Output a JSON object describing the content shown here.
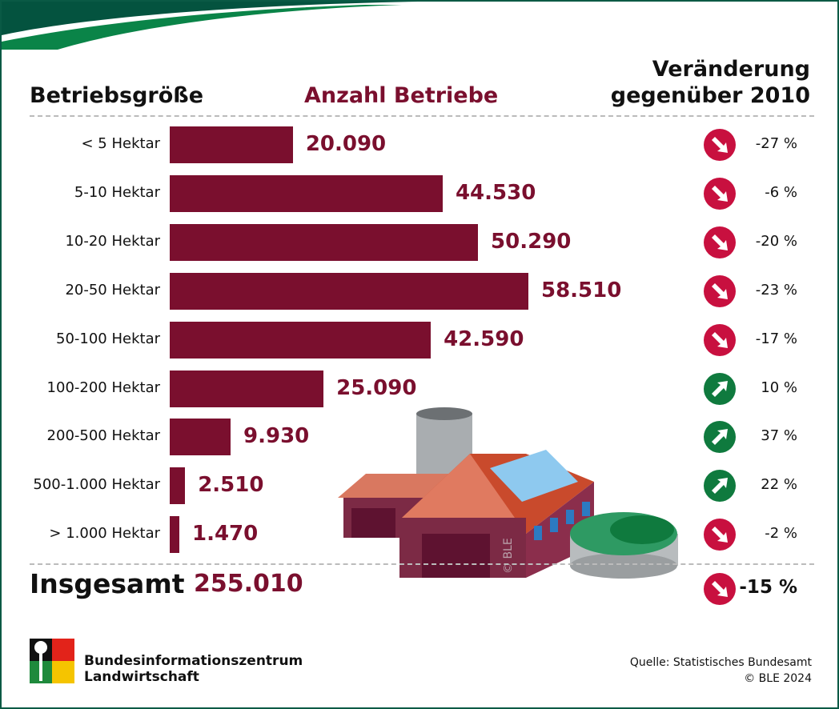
{
  "headers": {
    "size": "Betriebsgröße",
    "count": "Anzahl Betriebe",
    "change_line1": "Veränderung",
    "change_line2": "gegenüber 2010"
  },
  "chart_data": {
    "type": "bar",
    "title": "Anzahl Betriebe",
    "categories": [
      "< 5 Hektar",
      "5-10 Hektar",
      "10-20 Hektar",
      "20-50 Hektar",
      "50-100 Hektar",
      "100-200 Hektar",
      "200-500 Hektar",
      "500-1.000 Hektar",
      "> 1.000 Hektar"
    ],
    "values": [
      20090,
      44530,
      50290,
      58510,
      42590,
      25090,
      9930,
      2510,
      1470
    ],
    "value_labels": [
      "20.090",
      "44.530",
      "50.290",
      "58.510",
      "42.590",
      "25.090",
      "9.930",
      "2.510",
      "1.470"
    ],
    "change_labels": [
      "-27 %",
      "-6 %",
      "-20 %",
      "-23 %",
      "-17 %",
      "10 %",
      "37 %",
      "22 %",
      "-2 %"
    ],
    "change_values": [
      -27,
      -6,
      -20,
      -23,
      -17,
      10,
      37,
      22,
      -2
    ],
    "bar_color": "#7a0f2e",
    "down_color": "#c8103f",
    "up_color": "#0f7a3e"
  },
  "total": {
    "label": "Insgesamt",
    "value": "255.010",
    "change": "-15 %"
  },
  "footer": {
    "org_line1": "Bundesinformationszentrum",
    "org_line2": "Landwirtschaft",
    "source": "Quelle: Statistisches Bundesamt",
    "copyright": "© BLE 2024"
  },
  "illustration": {
    "watermark": "© BLE"
  }
}
